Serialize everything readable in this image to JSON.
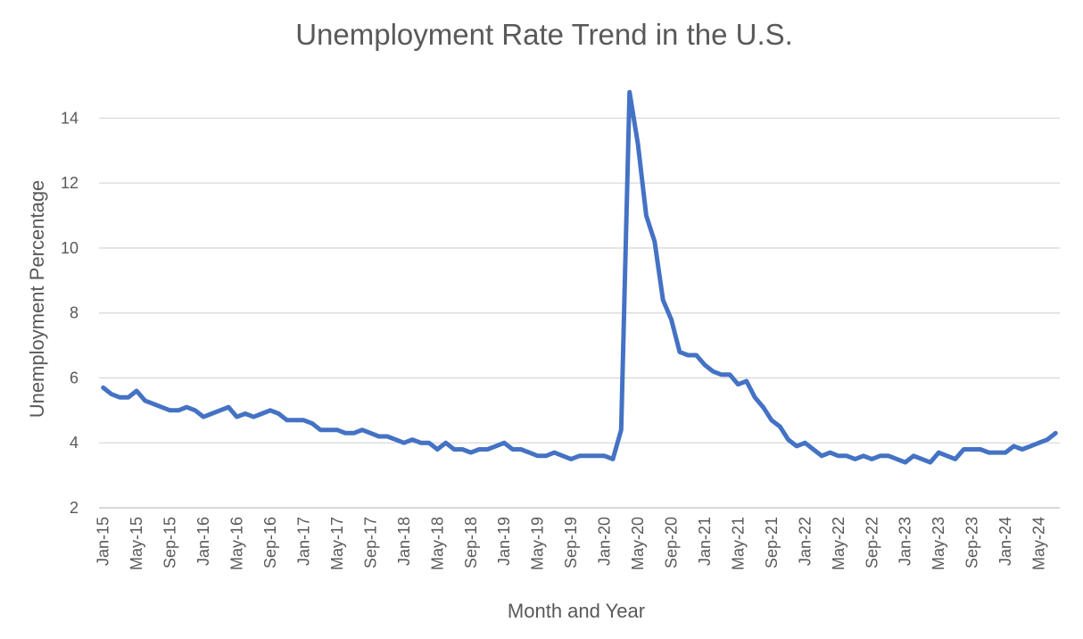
{
  "chart_data": {
    "type": "line",
    "title": "Unemployment Rate Trend in the U.S.",
    "xlabel": "Month and Year",
    "ylabel": "Unemployment Percentage",
    "ylim": [
      2,
      15
    ],
    "yticks": [
      2,
      4,
      6,
      8,
      10,
      12,
      14
    ],
    "grid": true,
    "legend": "none",
    "colors": {
      "line": "#4472c4",
      "grid": "#d9d9d9",
      "text": "#595959"
    },
    "x_tick_labels": [
      "Jan-15",
      "May-15",
      "Sep-15",
      "Jan-16",
      "May-16",
      "Sep-16",
      "Jan-17",
      "May-17",
      "Sep-17",
      "Jan-18",
      "May-18",
      "Sep-18",
      "Jan-19",
      "May-19",
      "Sep-19",
      "Jan-20",
      "May-20",
      "Sep-20",
      "Jan-21",
      "May-21",
      "Sep-21",
      "Jan-22",
      "May-22",
      "Sep-22",
      "Jan-23",
      "May-23",
      "Sep-23",
      "Jan-24",
      "May-24"
    ],
    "series": [
      {
        "x": [
          "Jan-15",
          "Feb-15",
          "Mar-15",
          "Apr-15",
          "May-15",
          "Jun-15",
          "Jul-15",
          "Aug-15",
          "Sep-15",
          "Oct-15",
          "Nov-15",
          "Dec-15",
          "Jan-16",
          "Feb-16",
          "Mar-16",
          "Apr-16",
          "May-16",
          "Jun-16",
          "Jul-16",
          "Aug-16",
          "Sep-16",
          "Oct-16",
          "Nov-16",
          "Dec-16",
          "Jan-17",
          "Feb-17",
          "Mar-17",
          "Apr-17",
          "May-17",
          "Jun-17",
          "Jul-17",
          "Aug-17",
          "Sep-17",
          "Oct-17",
          "Nov-17",
          "Dec-17",
          "Jan-18",
          "Feb-18",
          "Mar-18",
          "Apr-18",
          "May-18",
          "Jun-18",
          "Jul-18",
          "Aug-18",
          "Sep-18",
          "Oct-18",
          "Nov-18",
          "Dec-18",
          "Jan-19",
          "Feb-19",
          "Mar-19",
          "Apr-19",
          "May-19",
          "Jun-19",
          "Jul-19",
          "Aug-19",
          "Sep-19",
          "Oct-19",
          "Nov-19",
          "Dec-19",
          "Jan-20",
          "Feb-20",
          "Mar-20",
          "Apr-20",
          "May-20",
          "Jun-20",
          "Jul-20",
          "Aug-20",
          "Sep-20",
          "Oct-20",
          "Nov-20",
          "Dec-20",
          "Jan-21",
          "Feb-21",
          "Mar-21",
          "Apr-21",
          "May-21",
          "Jun-21",
          "Jul-21",
          "Aug-21",
          "Sep-21",
          "Oct-21",
          "Nov-21",
          "Dec-21",
          "Jan-22",
          "Feb-22",
          "Mar-22",
          "Apr-22",
          "May-22",
          "Jun-22",
          "Jul-22",
          "Aug-22",
          "Sep-22",
          "Oct-22",
          "Nov-22",
          "Dec-22",
          "Jan-23",
          "Feb-23",
          "Mar-23",
          "Apr-23",
          "May-23",
          "Jun-23",
          "Jul-23",
          "Aug-23",
          "Sep-23",
          "Oct-23",
          "Nov-23",
          "Dec-23",
          "Jan-24",
          "Feb-24",
          "Mar-24",
          "Apr-24",
          "May-24",
          "Jun-24",
          "Jul-24"
        ],
        "values": [
          5.7,
          5.5,
          5.4,
          5.4,
          5.6,
          5.3,
          5.2,
          5.1,
          5.0,
          5.0,
          5.1,
          5.0,
          4.8,
          4.9,
          5.0,
          5.1,
          4.8,
          4.9,
          4.8,
          4.9,
          5.0,
          4.9,
          4.7,
          4.7,
          4.7,
          4.6,
          4.4,
          4.4,
          4.4,
          4.3,
          4.3,
          4.4,
          4.3,
          4.2,
          4.2,
          4.1,
          4.0,
          4.1,
          4.0,
          4.0,
          3.8,
          4.0,
          3.8,
          3.8,
          3.7,
          3.8,
          3.8,
          3.9,
          4.0,
          3.8,
          3.8,
          3.7,
          3.6,
          3.6,
          3.7,
          3.6,
          3.5,
          3.6,
          3.6,
          3.6,
          3.6,
          3.5,
          4.4,
          14.8,
          13.2,
          11.0,
          10.2,
          8.4,
          7.8,
          6.8,
          6.7,
          6.7,
          6.4,
          6.2,
          6.1,
          6.1,
          5.8,
          5.9,
          5.4,
          5.1,
          4.7,
          4.5,
          4.1,
          3.9,
          4.0,
          3.8,
          3.6,
          3.7,
          3.6,
          3.6,
          3.5,
          3.6,
          3.5,
          3.6,
          3.6,
          3.5,
          3.4,
          3.6,
          3.5,
          3.4,
          3.7,
          3.6,
          3.5,
          3.8,
          3.8,
          3.8,
          3.7,
          3.7,
          3.7,
          3.9,
          3.8,
          3.9,
          4.0,
          4.1,
          4.3
        ]
      }
    ]
  }
}
